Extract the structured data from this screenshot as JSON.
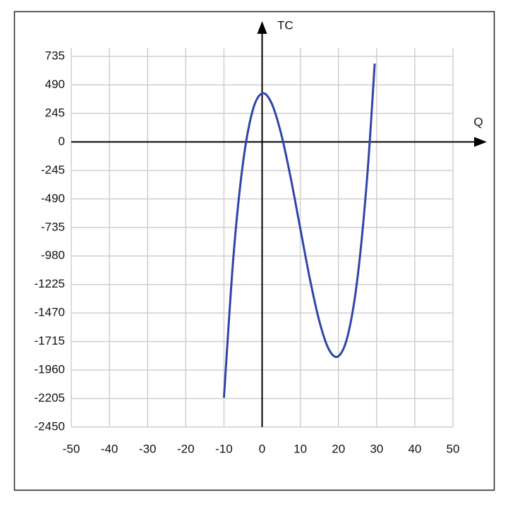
{
  "chart_data": {
    "type": "line",
    "x_label": "Q",
    "y_label": "TC",
    "x": [
      -10,
      -7.5,
      -5,
      -2.5,
      0,
      2.5,
      5,
      7.5,
      10,
      12.5,
      15,
      17.5,
      20,
      22.5,
      25,
      27.5,
      29.5
    ],
    "series": [
      {
        "color": "#2f45a8",
        "values": [
          -2198,
          -980,
          -178,
          267,
          417,
          331,
          68,
          -310,
          -744,
          -1175,
          -1541,
          -1783,
          -1841,
          -1656,
          -1166,
          -312,
          673
        ]
      }
    ],
    "xlim": [
      -50,
      50
    ],
    "xticks": [
      -50,
      -40,
      -30,
      -20,
      -10,
      0,
      10,
      20,
      30,
      40,
      50
    ],
    "ylim": [
      -2450,
      735
    ],
    "yticks": [
      -2450,
      -2205,
      -1960,
      -1715,
      -1470,
      -1225,
      -980,
      -735,
      -490,
      -245,
      0,
      245,
      490,
      735
    ],
    "grid": true
  }
}
